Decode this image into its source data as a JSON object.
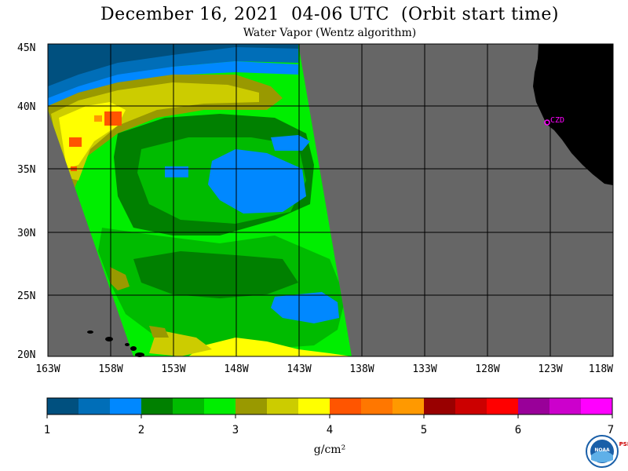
{
  "header": {
    "title": "December 16, 2021  04-06 UTC  (Orbit start time)",
    "subtitle": "Water Vapor (Wentz algorithm)"
  },
  "map": {
    "lat_labels": [
      "45N",
      "40N",
      "35N",
      "30N",
      "25N",
      "20N"
    ],
    "lon_labels": [
      "163W",
      "158W",
      "153W",
      "148W",
      "143W",
      "138W",
      "133W",
      "128W",
      "123W",
      "118W"
    ],
    "station_label": "CZD",
    "colors": {
      "no_data": "#666666",
      "land": "#000000",
      "grid": "#000000",
      "station": "#ff00ff"
    }
  },
  "colorbar": {
    "ticks": [
      "1",
      "2",
      "3",
      "4",
      "5",
      "6",
      "7"
    ],
    "unit": "g/cm²",
    "colors": [
      "#00507f",
      "#006eb8",
      "#0088ff",
      "#008000",
      "#00bb00",
      "#00ee00",
      "#999900",
      "#cccc00",
      "#ffff00",
      "#ff5500",
      "#ff7700",
      "#ff9900",
      "#990000",
      "#cc0000",
      "#ff0000",
      "#990099",
      "#cc00cc",
      "#ff00ff"
    ]
  },
  "logos": {
    "noaa": "NOAA",
    "psl": "PSL"
  }
}
